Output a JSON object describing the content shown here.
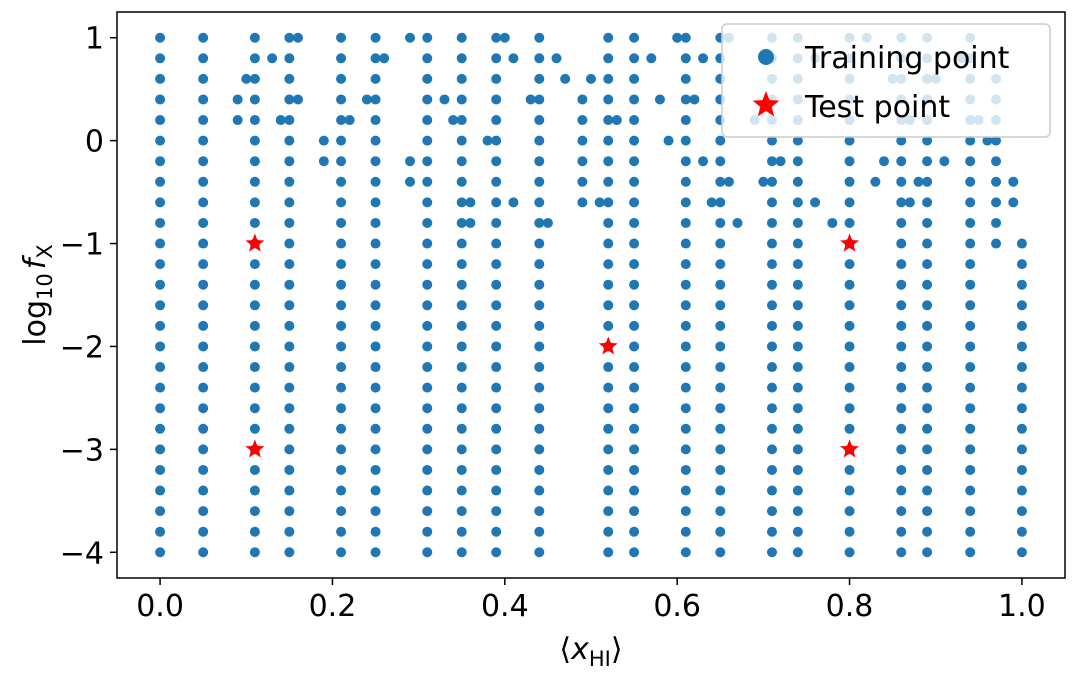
{
  "chart_data": {
    "type": "scatter",
    "xlabel": "⟨x_HI⟩",
    "ylabel": "log10 f_X",
    "xlim": [
      -0.05,
      1.05
    ],
    "ylim": [
      -4.25,
      1.25
    ],
    "x_ticks": [
      0.0,
      0.2,
      0.4,
      0.6,
      0.8,
      1.0
    ],
    "x_tick_labels": [
      "0.0",
      "0.2",
      "0.4",
      "0.6",
      "0.8",
      "1.0"
    ],
    "y_ticks": [
      1,
      0,
      -1,
      -2,
      -3,
      -4
    ],
    "y_tick_labels": [
      "1",
      "0",
      "−1",
      "−2",
      "−3",
      "−4"
    ],
    "grid": false,
    "legend_position": "top-right",
    "colors": {
      "training": "#1f77b4",
      "test": "#ff0000"
    },
    "series": [
      {
        "name": "Training point",
        "marker": "circle",
        "columns": [
          {
            "x": 0.0,
            "y_min": -4,
            "y_max": 1
          },
          {
            "x": 0.05,
            "y_min": -4,
            "y_max": 1
          },
          {
            "x": 0.09,
            "y_min": 0.2,
            "y_max": 0.4
          },
          {
            "x": 0.11,
            "y_min": -4,
            "y_max": 1
          },
          {
            "x": 0.15,
            "y_min": -4,
            "y_max": 1
          },
          {
            "x": 0.21,
            "y_min": -4,
            "y_max": 1
          },
          {
            "x": 0.25,
            "y_min": -4,
            "y_max": 1
          },
          {
            "x": 0.31,
            "y_min": -4,
            "y_max": 1
          },
          {
            "x": 0.35,
            "y_min": -4,
            "y_max": 1
          },
          {
            "x": 0.39,
            "y_min": -4,
            "y_max": 1
          },
          {
            "x": 0.44,
            "y_min": -4,
            "y_max": 1
          },
          {
            "x": 0.49,
            "y_min": -0.6,
            "y_max": 0.4
          },
          {
            "x": 0.52,
            "y_min": -4,
            "y_max": 1
          },
          {
            "x": 0.55,
            "y_min": -4,
            "y_max": 1
          },
          {
            "x": 0.61,
            "y_min": -4,
            "y_max": 1
          },
          {
            "x": 0.65,
            "y_min": -4,
            "y_max": 1
          },
          {
            "x": 0.71,
            "y_min": -4,
            "y_max": 1
          },
          {
            "x": 0.74,
            "y_min": -4,
            "y_max": 1
          },
          {
            "x": 0.8,
            "y_min": -4,
            "y_max": 1
          },
          {
            "x": 0.86,
            "y_min": -4,
            "y_max": 1
          },
          {
            "x": 0.89,
            "y_min": -4,
            "y_max": 1
          },
          {
            "x": 0.94,
            "y_min": -4,
            "y_max": 1
          },
          {
            "x": 0.97,
            "y_min": -1.0,
            "y_max": 0.6
          },
          {
            "x": 1.0,
            "y_min": -4,
            "y_max": -1
          }
        ],
        "extra_points": [
          {
            "x": 0.1,
            "y": 0.6
          },
          {
            "x": 0.13,
            "y": 0.8
          },
          {
            "x": 0.14,
            "y": 0.2
          },
          {
            "x": 0.16,
            "y": 1.0
          },
          {
            "x": 0.16,
            "y": 0.4
          },
          {
            "x": 0.19,
            "y": 0.0
          },
          {
            "x": 0.19,
            "y": -0.2
          },
          {
            "x": 0.22,
            "y": 0.2
          },
          {
            "x": 0.24,
            "y": 0.4
          },
          {
            "x": 0.26,
            "y": 0.8
          },
          {
            "x": 0.29,
            "y": 1.0
          },
          {
            "x": 0.29,
            "y": -0.2
          },
          {
            "x": 0.29,
            "y": -0.4
          },
          {
            "x": 0.33,
            "y": 0.4
          },
          {
            "x": 0.34,
            "y": 0.2
          },
          {
            "x": 0.36,
            "y": -0.6
          },
          {
            "x": 0.36,
            "y": -0.8
          },
          {
            "x": 0.38,
            "y": 0.0
          },
          {
            "x": 0.4,
            "y": 1.0
          },
          {
            "x": 0.41,
            "y": 0.8
          },
          {
            "x": 0.41,
            "y": -0.6
          },
          {
            "x": 0.43,
            "y": 0.4
          },
          {
            "x": 0.45,
            "y": -0.8
          },
          {
            "x": 0.46,
            "y": 0.8
          },
          {
            "x": 0.47,
            "y": 0.6
          },
          {
            "x": 0.5,
            "y": 0.6
          },
          {
            "x": 0.51,
            "y": -0.6
          },
          {
            "x": 0.53,
            "y": 0.2
          },
          {
            "x": 0.57,
            "y": 0.8
          },
          {
            "x": 0.58,
            "y": 0.4
          },
          {
            "x": 0.59,
            "y": 0.0
          },
          {
            "x": 0.6,
            "y": 1.0
          },
          {
            "x": 0.62,
            "y": 0.4
          },
          {
            "x": 0.63,
            "y": 0.8
          },
          {
            "x": 0.63,
            "y": -0.2
          },
          {
            "x": 0.64,
            "y": -0.6
          },
          {
            "x": 0.66,
            "y": 1.0
          },
          {
            "x": 0.66,
            "y": -0.4
          },
          {
            "x": 0.67,
            "y": -0.8
          },
          {
            "x": 0.69,
            "y": 0.2
          },
          {
            "x": 0.7,
            "y": -0.4
          },
          {
            "x": 0.72,
            "y": -0.2
          },
          {
            "x": 0.76,
            "y": 0.8
          },
          {
            "x": 0.76,
            "y": -0.6
          },
          {
            "x": 0.78,
            "y": -0.8
          },
          {
            "x": 0.82,
            "y": 1.0
          },
          {
            "x": 0.83,
            "y": -0.4
          },
          {
            "x": 0.84,
            "y": -0.2
          },
          {
            "x": 0.85,
            "y": 0.6
          },
          {
            "x": 0.87,
            "y": 0.2
          },
          {
            "x": 0.87,
            "y": -0.6
          },
          {
            "x": 0.88,
            "y": -0.4
          },
          {
            "x": 0.9,
            "y": 0.6
          },
          {
            "x": 0.91,
            "y": -0.2
          },
          {
            "x": 0.93,
            "y": 0.8
          },
          {
            "x": 0.95,
            "y": 0.2
          },
          {
            "x": 0.96,
            "y": 0.0
          },
          {
            "x": 0.99,
            "y": -0.4
          },
          {
            "x": 0.99,
            "y": -0.6
          }
        ]
      },
      {
        "name": "Test point",
        "marker": "star",
        "points": [
          {
            "x": 0.11,
            "y": -1.0
          },
          {
            "x": 0.11,
            "y": -3.0
          },
          {
            "x": 0.52,
            "y": -2.0
          },
          {
            "x": 0.8,
            "y": -1.0
          },
          {
            "x": 0.8,
            "y": -3.0
          }
        ]
      }
    ]
  }
}
